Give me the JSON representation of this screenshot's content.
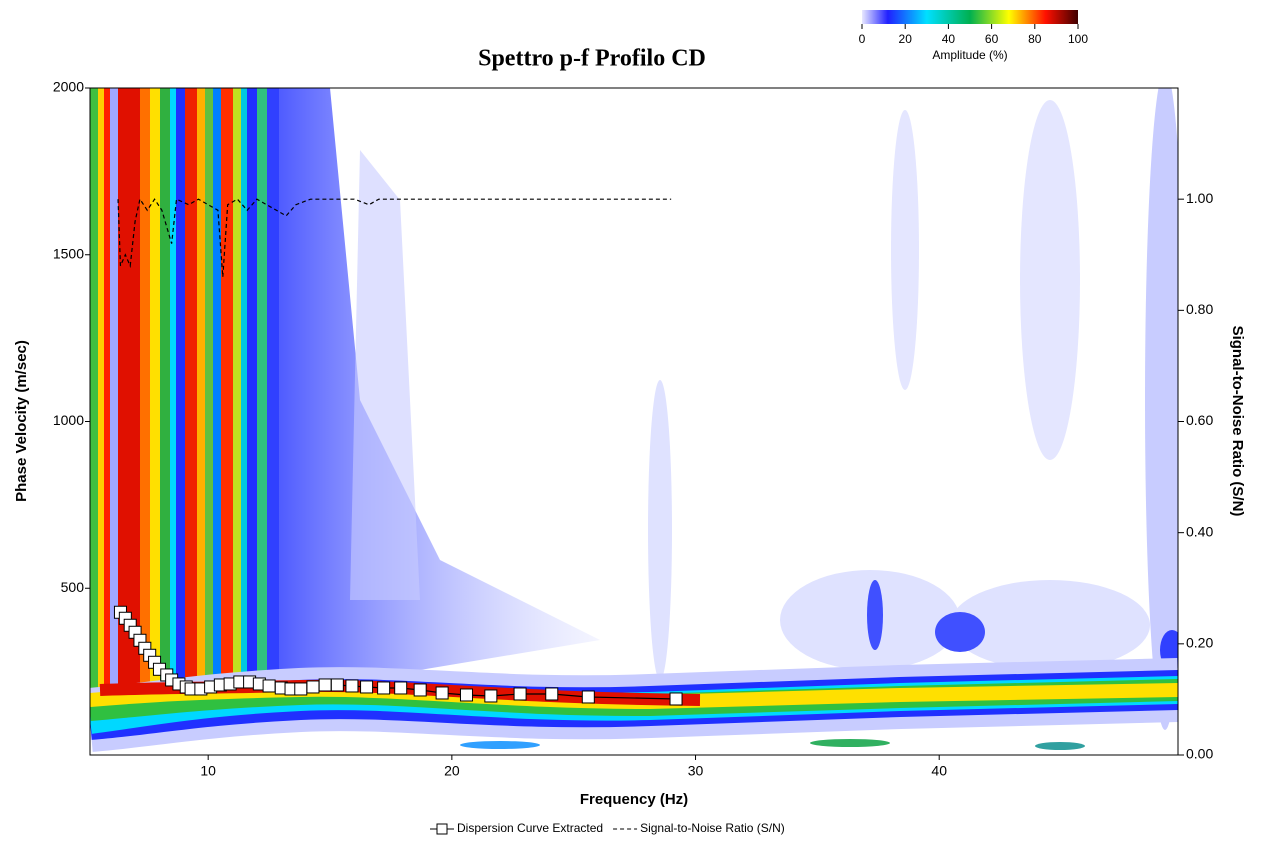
{
  "chart_data": {
    "type": "line",
    "title": "Spettro p-f  Profilo CD",
    "x_label": "Frequency (Hz)",
    "y_label": "Phase Velocity (m/sec)",
    "y2_label": "Signal-to-Noise Ratio (S/N)",
    "xlim": [
      5.15,
      49.8
    ],
    "xticks": [
      10,
      20,
      30,
      40
    ],
    "ylim": [
      0,
      2000
    ],
    "yticks": [
      500,
      1000,
      1500,
      2000
    ],
    "y2lim": [
      0,
      1.2
    ],
    "y2ticks": [
      {
        "value": 0,
        "label": "0.00"
      },
      {
        "value": 0.2,
        "label": "0.20"
      },
      {
        "value": 0.4,
        "label": "0.40"
      },
      {
        "value": 0.6,
        "label": "0.60"
      },
      {
        "value": 0.8,
        "label": "0.80"
      },
      {
        "value": 1,
        "label": "1.00"
      }
    ],
    "colorbar": {
      "label": "Amplitude (%)",
      "lim": [
        0,
        100
      ],
      "ticks": [
        0,
        20,
        40,
        60,
        80,
        100
      ]
    },
    "series": [
      {
        "name": "Dispersion Curve Extracted",
        "color": "#000000",
        "marker": "square",
        "x": [
          6.4,
          6.6,
          6.8,
          7.0,
          7.2,
          7.4,
          7.6,
          7.8,
          8.0,
          8.3,
          8.5,
          8.8,
          9.1,
          9.3,
          9.7,
          10.1,
          10.5,
          10.9,
          11.3,
          11.7,
          12.1,
          12.5,
          13.0,
          13.4,
          13.8,
          14.3,
          14.8,
          15.3,
          15.9,
          16.5,
          17.2,
          17.9,
          18.7,
          19.6,
          20.6,
          21.6,
          22.8,
          24.1,
          25.6,
          29.2
        ],
        "values": [
          428,
          410,
          389,
          368,
          344,
          320,
          299,
          278,
          257,
          240,
          225,
          213,
          204,
          198,
          198,
          204,
          210,
          213,
          219,
          219,
          213,
          207,
          201,
          198,
          198,
          204,
          210,
          210,
          207,
          204,
          201,
          201,
          195,
          186,
          180,
          177,
          183,
          183,
          174,
          168
        ]
      },
      {
        "name": "Signal-to-Noise Ratio (S/N)",
        "color": "#000000",
        "linestyle": "dashed",
        "axis": "y2",
        "x": [
          6.3,
          6.4,
          6.6,
          6.8,
          7.0,
          7.2,
          7.5,
          7.8,
          8.1,
          8.5,
          8.7,
          9.2,
          9.6,
          10.0,
          10.4,
          10.6,
          10.8,
          11.2,
          11.6,
          12.0,
          12.4,
          12.8,
          13.2,
          13.6,
          14.2,
          15.0,
          16.0,
          16.6,
          17.0,
          18.0,
          29.0
        ],
        "values": [
          1.0,
          0.88,
          0.9,
          0.88,
          0.96,
          1.0,
          0.98,
          1.0,
          0.98,
          0.92,
          1.0,
          0.99,
          1.0,
          0.99,
          0.98,
          0.86,
          0.99,
          1.0,
          0.98,
          1.0,
          0.99,
          0.98,
          0.97,
          0.99,
          1.0,
          1.0,
          1.0,
          0.99,
          1.0,
          1.0,
          1.0
        ]
      }
    ]
  }
}
